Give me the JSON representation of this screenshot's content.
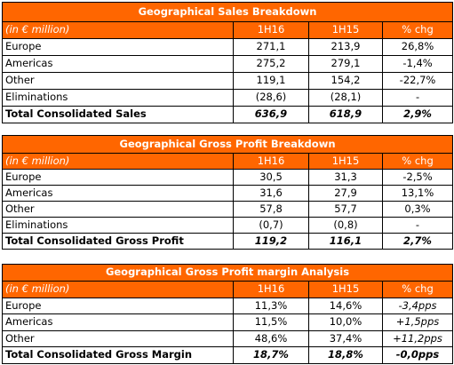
{
  "tables": [
    {
      "title": "Geographical Sales Breakdown",
      "header": [
        "(in € million)",
        "1H16",
        "1H15",
        "% chg"
      ],
      "rows": [
        [
          "Europe",
          "271,1",
          "213,9",
          "26,8%"
        ],
        [
          "Americas",
          "275,2",
          "279,1",
          "-1,4%"
        ],
        [
          "Other",
          "119,1",
          "154,2",
          "-22,7%"
        ],
        [
          "Eliminations",
          "(28,6)",
          "(28,1)",
          "-"
        ]
      ],
      "total": [
        "Total Consolidated Sales",
        "636,9",
        "618,9",
        "2,9%"
      ]
    },
    {
      "title": "Geographical Gross Profit Breakdown",
      "header": [
        "(in € million)",
        "1H16",
        "1H15",
        "% chg"
      ],
      "rows": [
        [
          "Europe",
          "30,5",
          "31,3",
          "-2,5%"
        ],
        [
          "Americas",
          "31,6",
          "27,9",
          "13,1%"
        ],
        [
          "Other",
          "57,8",
          "57,7",
          "0,3%"
        ],
        [
          "Eliminations",
          "(0,7)",
          "(0,8)",
          "-"
        ]
      ],
      "total": [
        "Total Consolidated Gross Profit",
        "119,2",
        "116,1",
        "2,7%"
      ]
    },
    {
      "title": "Geographical Gross Profit margin Analysis",
      "header": [
        "(in € million)",
        "1H16",
        "1H15",
        "% chg"
      ],
      "rows": [
        [
          "Europe",
          "11,3%",
          "14,6%",
          "-3,4pps"
        ],
        [
          "Americas",
          "11,5%",
          "10,0%",
          "+1,5pps"
        ],
        [
          "Other",
          "48,6%",
          "37,4%",
          "+11,2pps"
        ]
      ],
      "total": [
        "Total Consolidated Gross Margin",
        "18,7%",
        "18,8%",
        "-0,0pps"
      ]
    }
  ]
}
